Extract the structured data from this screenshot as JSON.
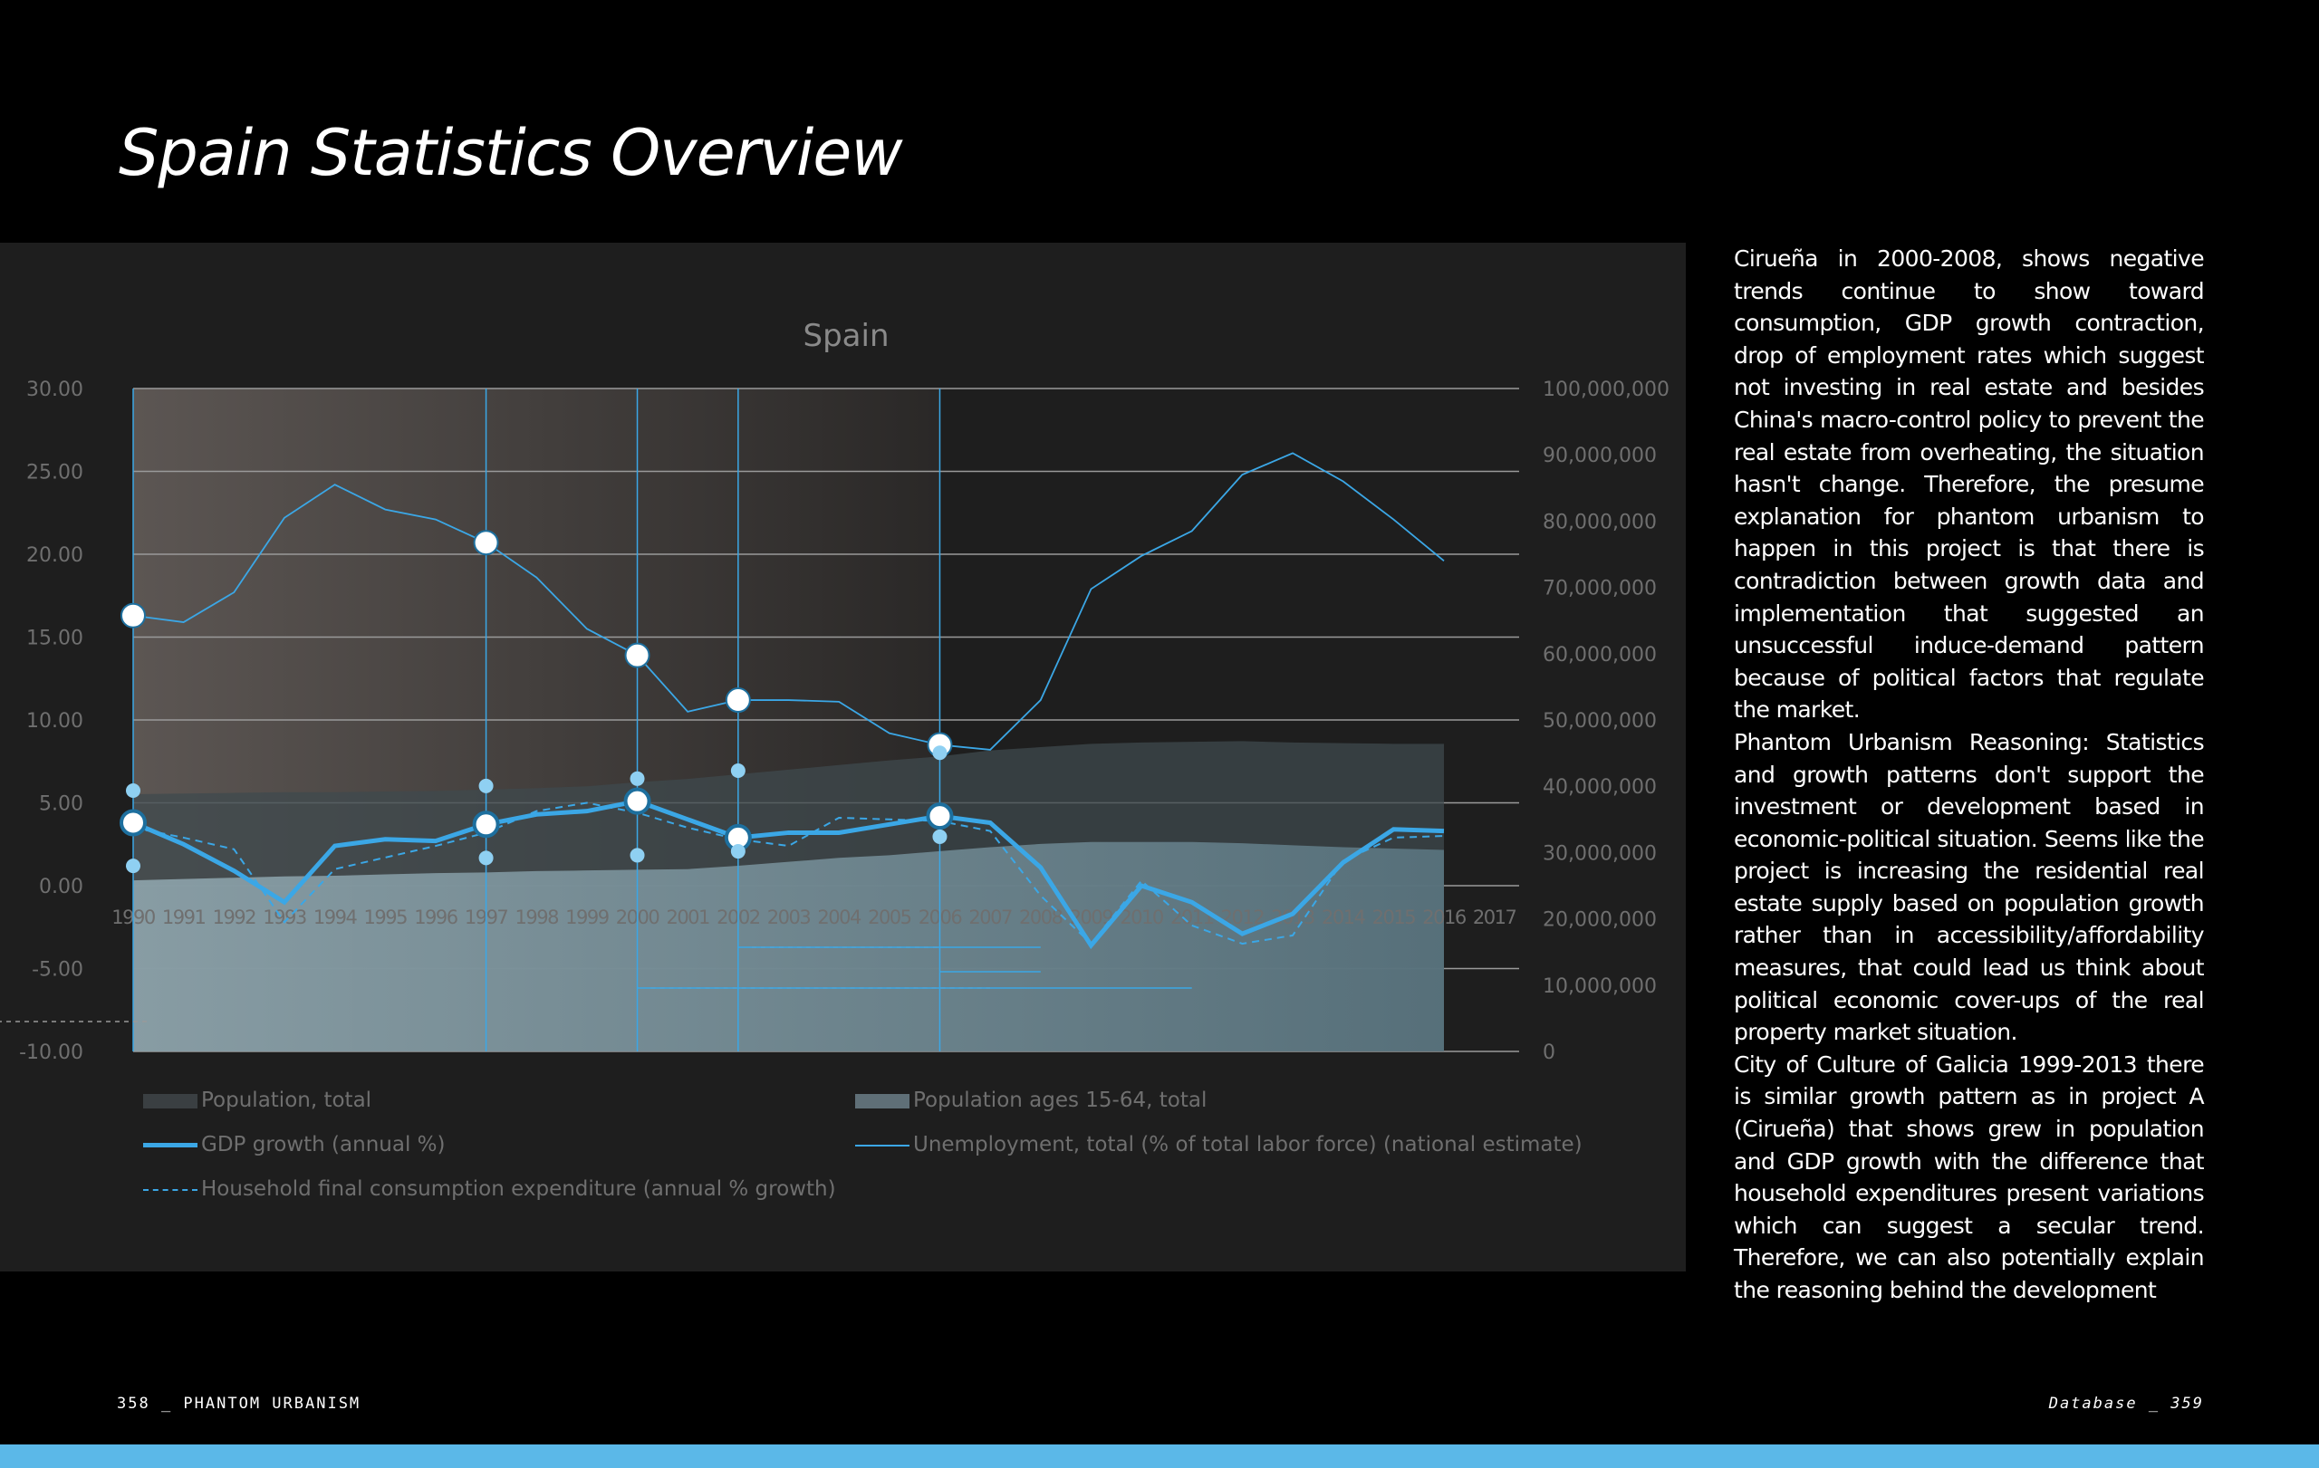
{
  "page": {
    "title": "Spain Statistics Overview",
    "footer_left": "358 _ PHANTOM URBANISM",
    "footer_right": "Database _ 359",
    "accent": "#5bb8e8"
  },
  "text": [
    "Cirueña in 2000-2008, shows negative trends continue to show toward consumption, GDP growth contraction, drop of employment rates which suggest not investing in real estate and besides China's macro-control policy to prevent the real estate from overheating, the situation hasn't change. Therefore, the presume explanation for phantom urbanism to happen in this project is that there is contradiction between growth data and implementation that suggested an unsuccessful induce-demand pattern because of political factors that regulate the market.",
    "Phantom Urbanism Reasoning: Statistics and growth patterns don't support the investment or development based in economic-political situation. Seems like the project is increasing the residential real estate supply based on population growth rather than in accessibility/affordability measures, that could lead us think about political economic cover-ups of the real property market situation.",
    "City of Culture of Galicia 1999-2013 there is similar growth pattern as in project A (Cirueña) that shows grew in population and GDP growth with the difference that household expenditures present variations which can suggest a secular trend. Therefore, we can also potentially explain the reasoning behind the development"
  ],
  "chart_data": {
    "type": "line",
    "title": "Spain",
    "x": [
      1990,
      1991,
      1992,
      1993,
      1994,
      1995,
      1996,
      1997,
      1998,
      1999,
      2000,
      2001,
      2002,
      2003,
      2004,
      2005,
      2006,
      2007,
      2008,
      2009,
      2010,
      2011,
      2012,
      2013,
      2014,
      2015,
      2016
    ],
    "x_tick_labels": [
      "1990",
      "1991",
      "1992",
      "1993",
      "1994",
      "1995",
      "1996",
      "1997",
      "1998",
      "1999",
      "2000",
      "2001",
      "2002",
      "2003",
      "2004",
      "2005",
      "2006",
      "2007",
      "2008",
      "2009",
      "2010",
      "2011",
      "2012",
      "2013",
      "2014",
      "2015",
      "2016",
      "2017"
    ],
    "ylim": [
      -10,
      30
    ],
    "y_ticks": [
      "30.00",
      "25.00",
      "20.00",
      "15.00",
      "10.00",
      "5.00",
      "0.00",
      "-5.00",
      "-10.00"
    ],
    "y2lim": [
      0,
      100000000
    ],
    "y2_ticks": [
      "100,000,000",
      "90,000,000",
      "80,000,000",
      "70,000,000",
      "60,000,000",
      "50,000,000",
      "40,000,000",
      "30,000,000",
      "20,000,000",
      "10,000,000",
      "0"
    ],
    "highlight_years": [
      1990,
      1997,
      2000,
      2002,
      2006
    ],
    "grid": true,
    "legend_placement": "bottom",
    "series": [
      {
        "name": "Population, total",
        "type": "area",
        "axis": "right",
        "color": "#3a3f42",
        "values": [
          38.8,
          38.9,
          39.0,
          39.1,
          39.1,
          39.2,
          39.3,
          39.5,
          39.7,
          40.0,
          40.6,
          41.1,
          41.8,
          42.5,
          43.2,
          43.9,
          44.5,
          45.4,
          45.9,
          46.4,
          46.6,
          46.7,
          46.8,
          46.6,
          46.5,
          46.4,
          46.4
        ],
        "unit": "millions"
      },
      {
        "name": "Population ages 15-64, total",
        "type": "area",
        "axis": "right",
        "color": "#5f6f77",
        "values": [
          25.8,
          26.0,
          26.2,
          26.4,
          26.5,
          26.7,
          26.9,
          27.0,
          27.2,
          27.3,
          27.4,
          27.5,
          28.0,
          28.6,
          29.2,
          29.6,
          30.2,
          30.8,
          31.3,
          31.6,
          31.6,
          31.6,
          31.4,
          31.1,
          30.8,
          30.6,
          30.4
        ],
        "unit": "millions"
      },
      {
        "name": "GDP growth (annual %)",
        "type": "line",
        "axis": "left",
        "color": "#3ba7e6",
        "values": [
          3.8,
          2.5,
          0.9,
          -1.0,
          2.4,
          2.8,
          2.7,
          3.7,
          4.3,
          4.5,
          5.1,
          4.0,
          2.9,
          3.2,
          3.2,
          3.7,
          4.2,
          3.8,
          1.1,
          -3.6,
          0.0,
          -1.0,
          -2.9,
          -1.7,
          1.4,
          3.4,
          3.3
        ]
      },
      {
        "name": "Unemployment, total (% of total labor force) (national estimate)",
        "type": "line",
        "axis": "left",
        "color": "#3ba7e6",
        "values": [
          16.3,
          15.9,
          17.7,
          22.2,
          24.2,
          22.7,
          22.1,
          20.7,
          18.6,
          15.5,
          13.9,
          10.5,
          11.2,
          11.2,
          11.1,
          9.2,
          8.5,
          8.2,
          11.2,
          17.9,
          19.9,
          21.4,
          24.8,
          26.1,
          24.4,
          22.1,
          19.6
        ]
      },
      {
        "name": "Household final consumption expenditure (annual % growth)",
        "type": "dashed",
        "axis": "left",
        "color": "#3ba7e6",
        "values": [
          3.5,
          2.9,
          2.2,
          -2.2,
          1.0,
          1.7,
          2.4,
          3.2,
          4.5,
          5.0,
          4.4,
          3.5,
          2.8,
          2.4,
          4.1,
          4.0,
          3.9,
          3.3,
          -0.6,
          -3.5,
          0.3,
          -2.4,
          -3.5,
          -3.0,
          1.5,
          2.9,
          3.0
        ]
      }
    ]
  }
}
